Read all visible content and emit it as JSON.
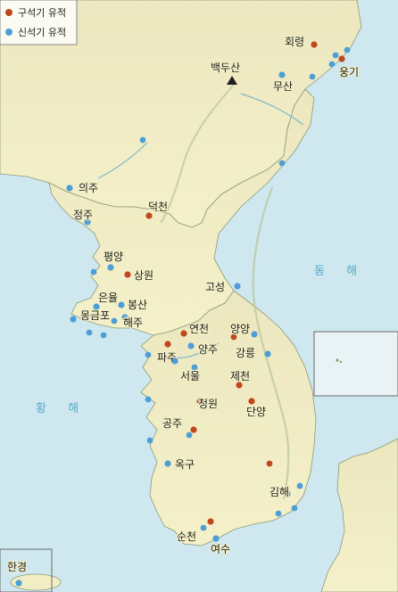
{
  "legend": {
    "items": [
      {
        "label": "구석기 유적",
        "color": "#c0461b"
      },
      {
        "label": "신석기 유적",
        "color": "#4d9ed6"
      }
    ]
  },
  "seas": {
    "east": "동 해",
    "west": "황 해"
  },
  "peak": {
    "label": "백두산",
    "symbol": "mountain-triangle-icon"
  },
  "sites": [
    {
      "name": "회령",
      "type": "paleolithic"
    },
    {
      "name": "웅기",
      "type": "paleolithic"
    },
    {
      "name": "무산",
      "type": "neolithic"
    },
    {
      "name": "의주",
      "type": "neolithic"
    },
    {
      "name": "정주",
      "type": "neolithic"
    },
    {
      "name": "덕천",
      "type": "paleolithic"
    },
    {
      "name": "평양",
      "type": "neolithic"
    },
    {
      "name": "상원",
      "type": "paleolithic"
    },
    {
      "name": "은율",
      "type": "neolithic"
    },
    {
      "name": "봉산",
      "type": "neolithic"
    },
    {
      "name": "몽금포",
      "type": "neolithic"
    },
    {
      "name": "해주",
      "type": "neolithic"
    },
    {
      "name": "고성",
      "type": "neolithic"
    },
    {
      "name": "연천",
      "type": "paleolithic"
    },
    {
      "name": "양양",
      "type": "neolithic"
    },
    {
      "name": "양주",
      "type": "neolithic"
    },
    {
      "name": "파주",
      "type": "paleolithic"
    },
    {
      "name": "강릉",
      "type": "neolithic"
    },
    {
      "name": "서울",
      "type": "neolithic"
    },
    {
      "name": "제천",
      "type": "paleolithic"
    },
    {
      "name": "청원",
      "type": "paleolithic"
    },
    {
      "name": "단양",
      "type": "paleolithic"
    },
    {
      "name": "공주",
      "type": "paleolithic"
    },
    {
      "name": "옥구",
      "type": "neolithic"
    },
    {
      "name": "김해",
      "type": "neolithic"
    },
    {
      "name": "순천",
      "type": "paleolithic"
    },
    {
      "name": "여수",
      "type": "neolithic"
    },
    {
      "name": "한경",
      "type": "neolithic"
    }
  ],
  "colors": {
    "sea": "#cfe8ef",
    "land": "#f1edc4",
    "paleolithic": "#c0461b",
    "neolithic": "#4d9ed6",
    "border": "#7aa36b"
  }
}
